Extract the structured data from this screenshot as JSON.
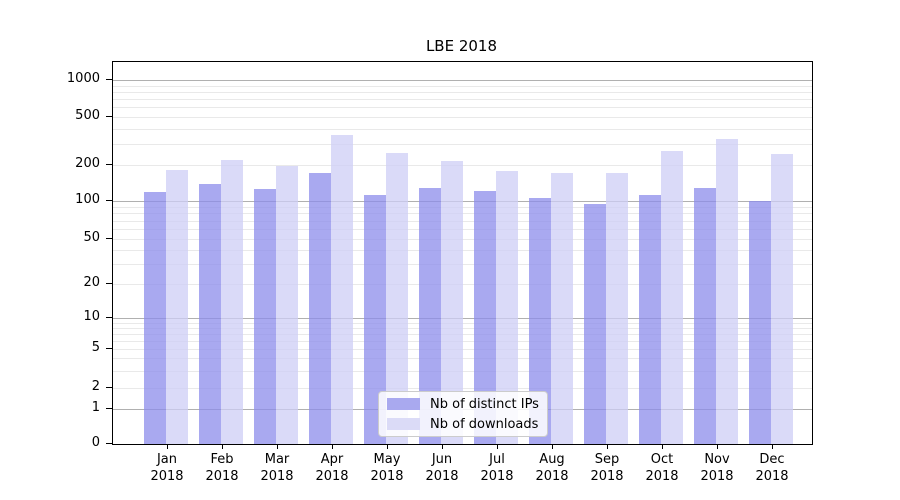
{
  "chart_data": {
    "type": "bar",
    "title": "LBE 2018",
    "categories": [
      "Jan",
      "Feb",
      "Mar",
      "Apr",
      "May",
      "Jun",
      "Jul",
      "Aug",
      "Sep",
      "Oct",
      "Nov",
      "Dec"
    ],
    "year_label": "2018",
    "series": [
      {
        "name": "Nb of distinct IPs",
        "color": "#a9a9ef",
        "fill": "rgba(140,140,235,0.75)",
        "values": [
          120,
          138,
          127,
          170,
          112,
          128,
          121,
          105,
          95,
          113,
          129,
          100
        ]
      },
      {
        "name": "Nb of downloads",
        "color": "#dbdbf7",
        "fill": "rgba(206,206,246,0.75)",
        "values": [
          180,
          218,
          198,
          352,
          250,
          217,
          178,
          171,
          171,
          260,
          330,
          245
        ]
      }
    ],
    "y_axis": {
      "scale": "symlog",
      "tick_labels": [
        "0",
        "1",
        "2",
        "5",
        "10",
        "20",
        "50",
        "100",
        "200",
        "500",
        "1000"
      ],
      "tick_values": [
        0,
        1,
        2,
        5,
        10,
        20,
        50,
        100,
        200,
        500,
        1000
      ],
      "range": [
        0,
        1400
      ],
      "grid": true
    },
    "legend_position": "lower center"
  },
  "colors": {
    "grid_major": "#b0b0b0",
    "grid_minor": "#e9e9e9",
    "axis": "#000000",
    "legend_border": "#cccccc"
  }
}
